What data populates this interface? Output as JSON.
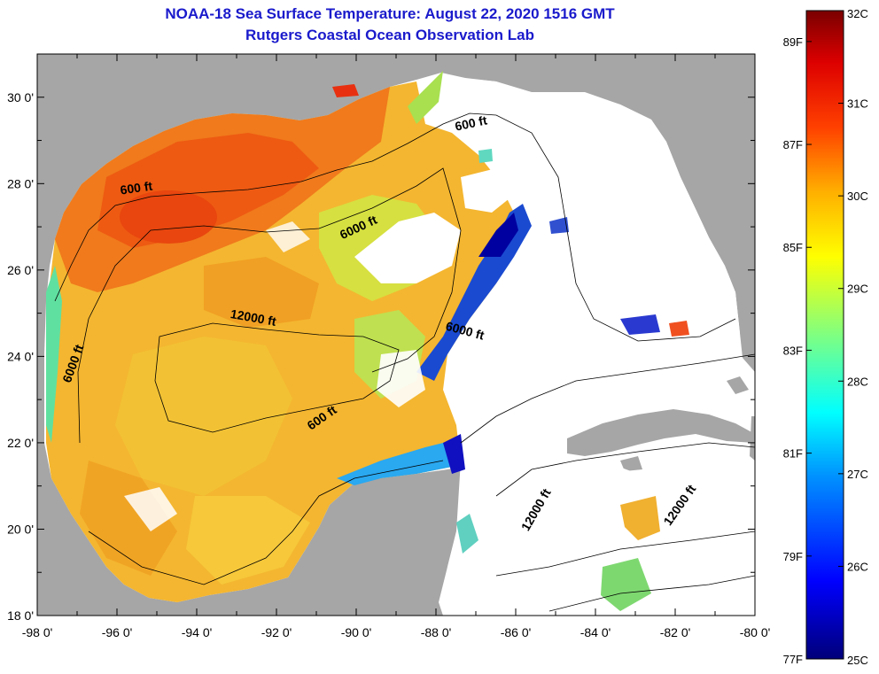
{
  "header": {
    "title": "NOAA-18 Sea Surface Temperature:  August 22, 2020 1516 GMT",
    "subtitle": "Rutgers Coastal Ocean Observation Lab"
  },
  "map": {
    "lon_range": [
      -98,
      -80
    ],
    "lat_range": [
      18,
      31
    ],
    "lon_ticks": [
      "-98 0'",
      "-96 0'",
      "-94 0'",
      "-92 0'",
      "-90 0'",
      "-88 0'",
      "-86 0'",
      "-84 0'",
      "-82 0'",
      "-80 0'"
    ],
    "lat_ticks": [
      "18 0'",
      "20 0'",
      "22 0'",
      "24 0'",
      "26 0'",
      "28 0'",
      "30 0'"
    ],
    "contour_labels": [
      {
        "text": "600 ft",
        "lon": -95.5,
        "lat": 27.8,
        "rot": -8
      },
      {
        "text": "600 ft",
        "lon": -87.1,
        "lat": 29.3,
        "rot": -12
      },
      {
        "text": "6000 ft",
        "lon": -89.9,
        "lat": 26.9,
        "rot": -25
      },
      {
        "text": "12000 ft",
        "lon": -92.6,
        "lat": 24.8,
        "rot": 10
      },
      {
        "text": "6000 ft",
        "lon": -97.0,
        "lat": 23.8,
        "rot": -70
      },
      {
        "text": "6000 ft",
        "lon": -87.3,
        "lat": 24.5,
        "rot": 15
      },
      {
        "text": "600 ft",
        "lon": -90.8,
        "lat": 22.5,
        "rot": -35
      },
      {
        "text": "12000 ft",
        "lon": -85.4,
        "lat": 20.4,
        "rot": -60
      },
      {
        "text": "12000 ft",
        "lon": -81.8,
        "lat": 20.5,
        "rot": -55
      }
    ]
  },
  "colorbar": {
    "celsius_labels": [
      "32C",
      "31C",
      "30C",
      "29C",
      "28C",
      "27C",
      "26C",
      "25C"
    ],
    "celsius_values": [
      32,
      31,
      30,
      29,
      28,
      27,
      26,
      25
    ],
    "fahrenheit_labels": [
      "89F",
      "87F",
      "85F",
      "83F",
      "81F",
      "79F",
      "77F"
    ],
    "fahrenheit_values": [
      89,
      87,
      85,
      83,
      81,
      79,
      77
    ],
    "range_c": [
      25,
      32
    ]
  },
  "colors": {
    "title": "#1a1acc",
    "land": "#a6a6a6",
    "ocean_nodata": "#ffffff"
  }
}
